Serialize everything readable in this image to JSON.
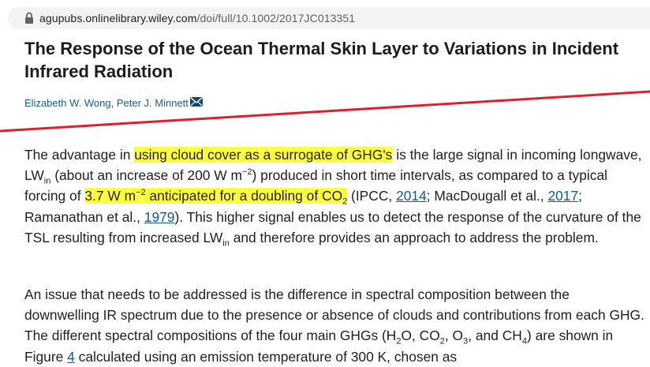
{
  "browser": {
    "url_domain": "agupubs.onlinelibrary.wiley.com",
    "url_path": "/doi/full/10.1002/2017JC013351"
  },
  "article": {
    "title": "The Response of the Ocean Thermal Skin Layer to Variations in Incident Infrared Radiation",
    "authors": [
      "Elizabeth W. Wong,",
      "Peter J. Minnett"
    ]
  },
  "paragraph1": {
    "t1": "The advantage in ",
    "h1": "using cloud cover as a surrogate of GHG's",
    "t2": " is the large signal in incoming longwave, LW",
    "s1": "in",
    "t3": " (about an increase of 200 W m",
    "sup1": "−2",
    "t4": ") produced in short time intervals, as compared to a typical forcing of ",
    "h2a": "3.7 W m",
    "h2sup": "−2",
    "h2b": " anticipated for a doubling of CO",
    "h2sub": "2",
    "t5": " (IPCC, ",
    "r1": "2014",
    "t6": "; MacDougall et al., ",
    "r2": "2017",
    "t7": "; Ramanathan et al., ",
    "r3": "1979",
    "t8": "). This higher signal enables us to detect the response of the curvature of the TSL resulting from increased LW",
    "s2": "in",
    "t9": " and therefore provides an approach to address the problem."
  },
  "paragraph2": {
    "t1": "An issue that needs to be addressed is the difference in spectral composition between the downwelling IR spectrum due to the presence or absence of clouds and contributions from each GHG. The different spectral compositions of the four main GHGs (H",
    "s1": "2",
    "t2": "O, CO",
    "s2": "2",
    "t3": ", O",
    "s3": "3",
    "t4": ", and CH",
    "s4": "4",
    "t5": ") are shown in Figure ",
    "r1": "4",
    "t6": " calculated using an emission temperature of 300 K, chosen as"
  },
  "colors": {
    "highlight": "#ffff3d",
    "annotation_line": "#e01e2e",
    "link": "#0d5c94"
  }
}
